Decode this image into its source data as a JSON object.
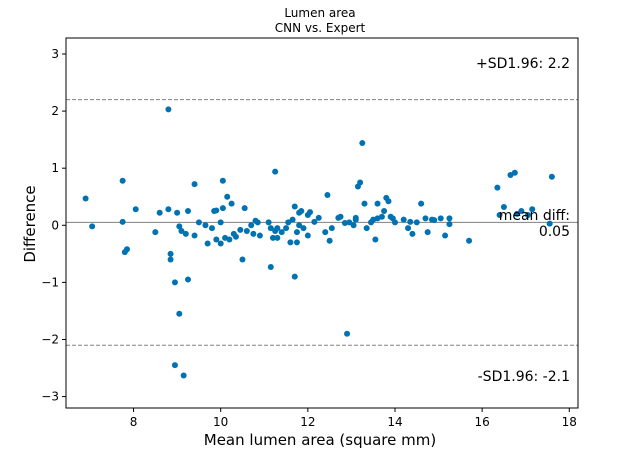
{
  "chart_data": {
    "type": "scatter",
    "title": "Lumen area",
    "subtitle": "CNN vs. Expert",
    "xlabel": "Mean lumen area (square mm)",
    "ylabel": "Difference",
    "xlim": [
      6.45,
      18.2
    ],
    "ylim": [
      -3.2,
      3.28
    ],
    "xticks": [
      8,
      10,
      12,
      14,
      16,
      18
    ],
    "yticks": [
      -3,
      -2,
      -1,
      0,
      1,
      2,
      3
    ],
    "grid": false,
    "colors": {
      "point": "#0072b2",
      "mean_line": "#808080",
      "sd_line": "#808080"
    },
    "mean_diff": 0.05,
    "upper_loa": 2.2,
    "lower_loa": -2.1,
    "annotations": {
      "upper": "+SD1.96: 2.2",
      "mean_line1": "mean diff:",
      "mean_line2": "0.05",
      "lower": "-SD1.96: -2.1"
    },
    "points": [
      [
        6.9,
        0.47
      ],
      [
        7.05,
        -0.02
      ],
      [
        7.75,
        0.78
      ],
      [
        7.75,
        0.06
      ],
      [
        7.8,
        -0.47
      ],
      [
        7.85,
        -0.42
      ],
      [
        8.05,
        0.28
      ],
      [
        8.5,
        -0.12
      ],
      [
        8.6,
        0.22
      ],
      [
        8.8,
        2.03
      ],
      [
        8.8,
        0.28
      ],
      [
        8.85,
        -0.5
      ],
      [
        8.85,
        -0.6
      ],
      [
        8.95,
        -1.0
      ],
      [
        8.95,
        -2.45
      ],
      [
        9.0,
        0.22
      ],
      [
        9.05,
        -0.02
      ],
      [
        9.05,
        -1.55
      ],
      [
        9.1,
        -0.1
      ],
      [
        9.15,
        -2.63
      ],
      [
        9.2,
        -0.15
      ],
      [
        9.25,
        0.25
      ],
      [
        9.25,
        -0.95
      ],
      [
        9.4,
        -0.18
      ],
      [
        9.4,
        0.72
      ],
      [
        9.5,
        0.05
      ],
      [
        9.65,
        0.0
      ],
      [
        9.7,
        -0.32
      ],
      [
        9.8,
        -0.05
      ],
      [
        9.85,
        0.25
      ],
      [
        9.9,
        0.26
      ],
      [
        9.9,
        -0.25
      ],
      [
        10.0,
        0.05
      ],
      [
        10.0,
        -0.32
      ],
      [
        10.05,
        0.3
      ],
      [
        10.05,
        0.78
      ],
      [
        10.1,
        -0.22
      ],
      [
        10.15,
        0.5
      ],
      [
        10.2,
        -0.25
      ],
      [
        10.25,
        0.38
      ],
      [
        10.3,
        -0.15
      ],
      [
        10.35,
        -0.2
      ],
      [
        10.45,
        -0.08
      ],
      [
        10.5,
        -0.6
      ],
      [
        10.55,
        0.3
      ],
      [
        10.6,
        -0.1
      ],
      [
        10.7,
        0.0
      ],
      [
        10.75,
        -0.15
      ],
      [
        10.8,
        0.08
      ],
      [
        10.85,
        0.05
      ],
      [
        10.9,
        -0.18
      ],
      [
        11.1,
        0.05
      ],
      [
        11.15,
        -0.05
      ],
      [
        11.15,
        -0.73
      ],
      [
        11.2,
        -0.22
      ],
      [
        11.25,
        -0.1
      ],
      [
        11.25,
        0.94
      ],
      [
        11.3,
        -0.05
      ],
      [
        11.3,
        -0.22
      ],
      [
        11.4,
        -0.12
      ],
      [
        11.5,
        -0.05
      ],
      [
        11.55,
        0.05
      ],
      [
        11.6,
        -0.3
      ],
      [
        11.65,
        0.1
      ],
      [
        11.7,
        0.33
      ],
      [
        11.7,
        -0.9
      ],
      [
        11.75,
        -0.12
      ],
      [
        11.75,
        -0.3
      ],
      [
        11.8,
        0.0
      ],
      [
        11.8,
        0.22
      ],
      [
        11.85,
        0.25
      ],
      [
        11.9,
        -0.05
      ],
      [
        12.0,
        -0.18
      ],
      [
        12.05,
        0.23
      ],
      [
        12.0,
        0.18
      ],
      [
        12.15,
        0.06
      ],
      [
        12.25,
        0.13
      ],
      [
        12.4,
        -0.12
      ],
      [
        12.45,
        0.53
      ],
      [
        12.5,
        -0.27
      ],
      [
        12.55,
        -0.05
      ],
      [
        12.7,
        0.13
      ],
      [
        12.75,
        0.15
      ],
      [
        12.85,
        0.04
      ],
      [
        12.9,
        -1.9
      ],
      [
        12.95,
        0.05
      ],
      [
        13.05,
        0.0
      ],
      [
        13.1,
        0.13
      ],
      [
        13.1,
        0.1
      ],
      [
        13.15,
        0.68
      ],
      [
        13.2,
        0.75
      ],
      [
        13.25,
        1.44
      ],
      [
        13.3,
        0.38
      ],
      [
        13.35,
        -0.05
      ],
      [
        13.45,
        0.05
      ],
      [
        13.5,
        0.1
      ],
      [
        13.55,
        -0.25
      ],
      [
        13.6,
        0.38
      ],
      [
        13.6,
        0.12
      ],
      [
        13.7,
        0.15
      ],
      [
        13.75,
        0.25
      ],
      [
        13.8,
        0.48
      ],
      [
        13.85,
        0.42
      ],
      [
        13.9,
        0.15
      ],
      [
        13.95,
        0.12
      ],
      [
        14.0,
        0.05
      ],
      [
        14.2,
        0.1
      ],
      [
        14.3,
        -0.05
      ],
      [
        14.35,
        0.06
      ],
      [
        14.4,
        -0.15
      ],
      [
        14.5,
        0.05
      ],
      [
        14.6,
        0.38
      ],
      [
        14.7,
        0.12
      ],
      [
        14.75,
        -0.12
      ],
      [
        14.85,
        0.1
      ],
      [
        14.9,
        0.09
      ],
      [
        15.05,
        0.12
      ],
      [
        15.15,
        -0.18
      ],
      [
        15.25,
        0.12
      ],
      [
        15.25,
        0.02
      ],
      [
        15.7,
        -0.27
      ],
      [
        16.35,
        0.66
      ],
      [
        16.4,
        0.18
      ],
      [
        16.5,
        0.32
      ],
      [
        16.65,
        0.88
      ],
      [
        16.75,
        0.92
      ],
      [
        16.8,
        0.2
      ],
      [
        16.9,
        0.25
      ],
      [
        17.05,
        0.18
      ],
      [
        17.15,
        0.28
      ],
      [
        17.55,
        0.03
      ],
      [
        17.6,
        0.85
      ]
    ]
  }
}
